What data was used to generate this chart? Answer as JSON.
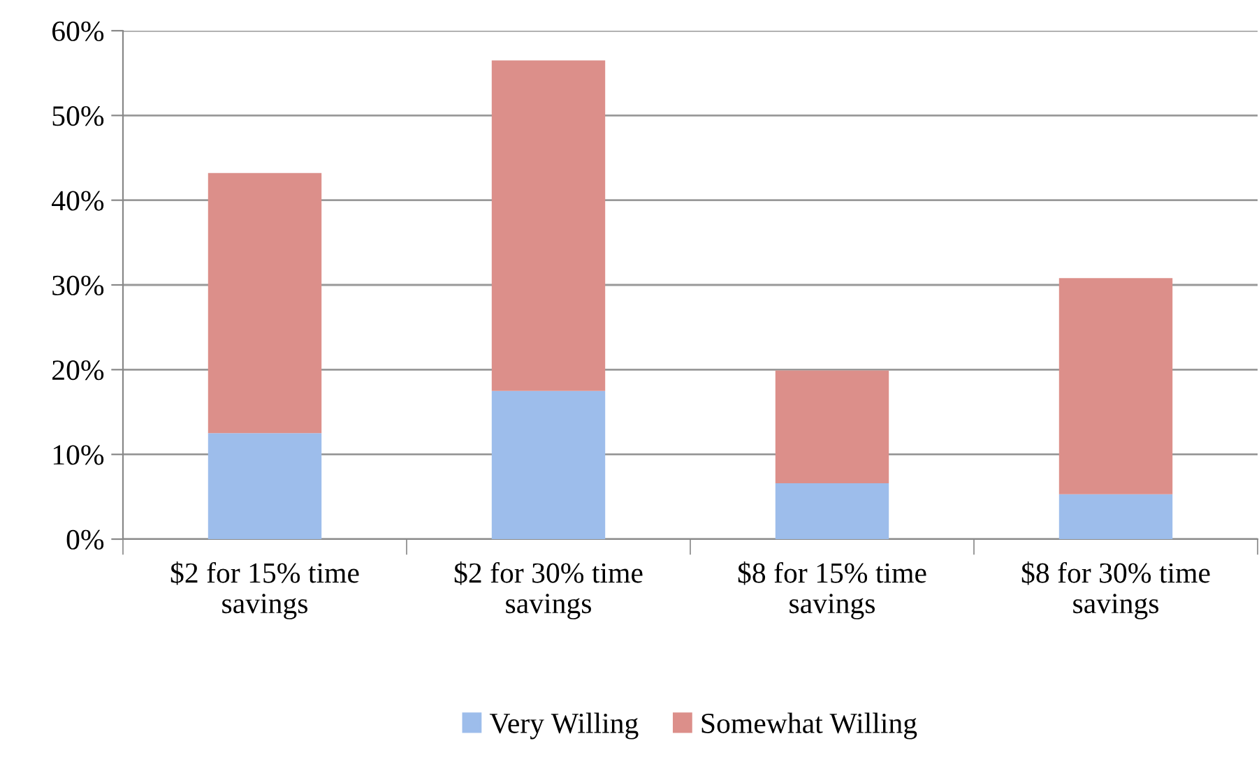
{
  "chart_data": {
    "type": "bar",
    "stacked": true,
    "categories": [
      "$2 for 15% time\nsavings",
      "$2 for 30% time\nsavings",
      "$8 for 15% time\nsavings",
      "$8 for 30% time\nsavings"
    ],
    "series": [
      {
        "name": "Very Willing",
        "color": "#9dbdeb",
        "values": [
          12.5,
          17.5,
          6.6,
          5.3
        ]
      },
      {
        "name": "Somewhat Willing",
        "color": "#dc8f8a",
        "values": [
          30.7,
          39.0,
          13.3,
          25.5
        ]
      }
    ],
    "ylim": [
      0,
      60
    ],
    "yticks": [
      {
        "value": 0,
        "label": "0%"
      },
      {
        "value": 10,
        "label": "10%"
      },
      {
        "value": 20,
        "label": "20%"
      },
      {
        "value": 30,
        "label": "30%"
      },
      {
        "value": 40,
        "label": "40%"
      },
      {
        "value": 50,
        "label": "50%"
      },
      {
        "value": 60,
        "label": "60%"
      }
    ],
    "grid": "y",
    "legend": "bottom"
  }
}
